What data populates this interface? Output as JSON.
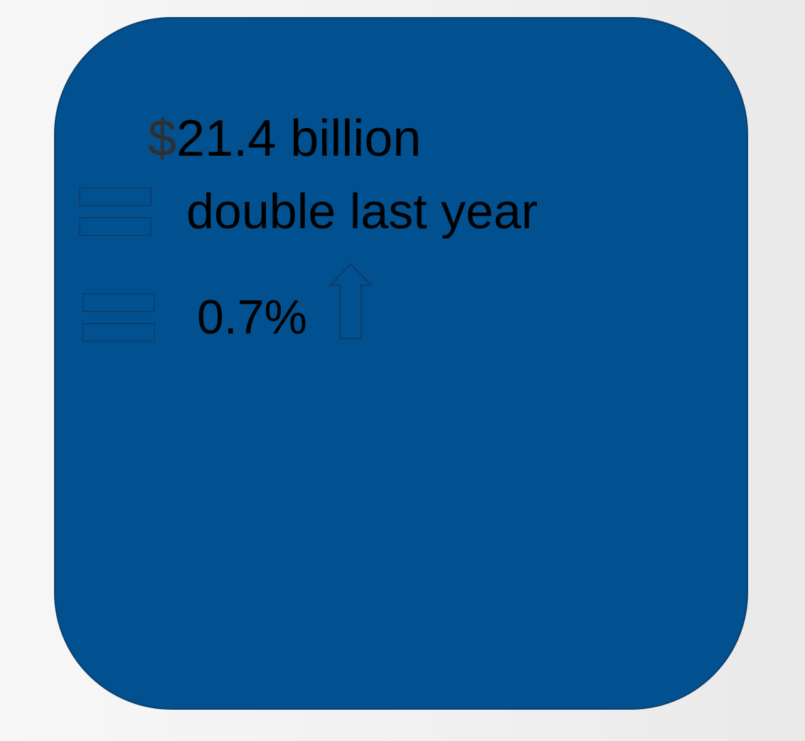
{
  "card": {
    "background_color": "#015191",
    "border_color": "#0d3f6d"
  },
  "stats": {
    "amount_symbol": "$",
    "amount_value": "21.4 billion",
    "comparison": "double last year",
    "percent": "0.7%",
    "trend_icon": "arrow-up-icon",
    "list_icon": "bars-icon"
  }
}
